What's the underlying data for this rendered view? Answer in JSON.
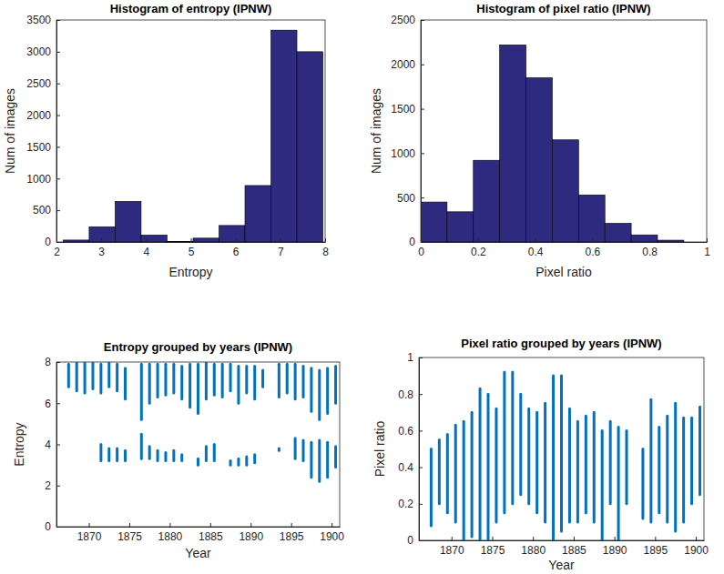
{
  "chart_data": [
    {
      "type": "histogram",
      "title": "Histogram of entropy (IPNW)",
      "x_label": "Entropy",
      "y_label": "Num of images",
      "bins": [
        2.15,
        2.73,
        3.31,
        3.89,
        4.47,
        5.05,
        5.63,
        6.21,
        6.79,
        7.37,
        7.95
      ],
      "values": [
        30,
        240,
        640,
        110,
        10,
        60,
        260,
        890,
        3340,
        3000
      ],
      "color": "#2e2a80",
      "xlim": [
        2,
        8
      ],
      "xticks": [
        2,
        3,
        4,
        5,
        6,
        7,
        8
      ],
      "ylim": [
        0,
        3500
      ],
      "yticks": [
        0,
        500,
        1000,
        1500,
        2000,
        2500,
        3000,
        3500
      ]
    },
    {
      "type": "histogram",
      "title": "Histogram of pixel ratio (IPNW)",
      "x_label": "Pixel ratio",
      "y_label": "Num of images",
      "bins": [
        0,
        0.092,
        0.184,
        0.276,
        0.368,
        0.46,
        0.552,
        0.644,
        0.736,
        0.828,
        0.92
      ],
      "values": [
        450,
        340,
        920,
        2220,
        1850,
        1150,
        530,
        210,
        80,
        20
      ],
      "color": "#2e2a80",
      "xlim": [
        0,
        1
      ],
      "xticks": [
        0,
        0.2,
        0.4,
        0.6,
        0.8,
        1
      ],
      "ylim": [
        0,
        2500
      ],
      "yticks": [
        0,
        500,
        1000,
        1500,
        2000,
        2500
      ]
    },
    {
      "type": "range",
      "title": "Entropy grouped by years (IPNW)",
      "x_label": "Year",
      "y_label": "Entropy",
      "series": [
        {
          "x": [
            1867.5,
            1868.5,
            1869.5,
            1870.5,
            1871.5,
            1872.5,
            1873.5,
            1874.5,
            1876.5,
            1877.5,
            1878.5,
            1879.5,
            1880.5,
            1881.5,
            1882.5,
            1883.5,
            1884.5,
            1885.5,
            1886.5,
            1887.5,
            1888.5,
            1889.5,
            1890.5,
            1891.5,
            1893.5,
            1894.5,
            1895.5,
            1896.5,
            1897.5,
            1898.5,
            1899.5,
            1900.5
          ],
          "low": [
            6.8,
            6.6,
            6.5,
            6.7,
            6.5,
            6.8,
            6.6,
            6.2,
            5.2,
            6.0,
            6.3,
            6.4,
            6.5,
            6.2,
            5.8,
            5.5,
            6.2,
            6.4,
            6.3,
            6.6,
            6.0,
            6.5,
            6.2,
            6.8,
            6.3,
            6.5,
            6.2,
            6.3,
            5.6,
            5.2,
            5.5,
            6.0
          ],
          "high": [
            7.9,
            8.0,
            8.0,
            8.0,
            7.9,
            8.0,
            7.9,
            7.7,
            7.9,
            7.9,
            7.9,
            7.9,
            7.9,
            7.8,
            7.9,
            7.9,
            8.0,
            7.9,
            7.9,
            7.9,
            7.8,
            7.8,
            7.8,
            7.6,
            7.9,
            7.9,
            7.9,
            7.8,
            7.7,
            7.6,
            7.7,
            7.8
          ]
        },
        {
          "x": [
            1871.5,
            1872.5,
            1873.5,
            1874.5,
            1876.5,
            1877.5,
            1878.5,
            1879.5,
            1880.5,
            1881.5,
            1883.5,
            1884.5,
            1885.5,
            1887.5,
            1888.5,
            1889.5,
            1890.5,
            1893.5,
            1895.5,
            1896.5,
            1897.5,
            1898.5,
            1899.5,
            1900.5
          ],
          "low": [
            3.2,
            3.2,
            3.2,
            3.2,
            3.3,
            3.3,
            3.2,
            3.2,
            3.2,
            3.2,
            3.0,
            3.2,
            3.2,
            3.0,
            3.0,
            3.0,
            3.1,
            3.7,
            3.3,
            3.2,
            2.4,
            2.2,
            2.4,
            2.9
          ],
          "high": [
            4.0,
            3.8,
            3.8,
            3.7,
            4.5,
            3.9,
            3.7,
            3.6,
            3.7,
            3.5,
            3.3,
            3.9,
            4.0,
            3.2,
            3.3,
            3.4,
            3.5,
            3.8,
            4.3,
            4.2,
            4.1,
            4.2,
            4.1,
            3.9
          ]
        }
      ],
      "color": "#0072bd",
      "xlim": [
        1866,
        1901
      ],
      "xticks": [
        1870,
        1875,
        1880,
        1885,
        1890,
        1895,
        1900
      ],
      "ylim": [
        0,
        8
      ],
      "yticks": [
        0,
        2,
        4,
        6,
        8
      ]
    },
    {
      "type": "range",
      "title": "Pixel ratio grouped by years (IPNW)",
      "x_label": "Year",
      "y_label": "Pixel ratio",
      "series": [
        {
          "x": [
            1867.5,
            1868.5,
            1869.5,
            1870.5,
            1871.5,
            1872.5,
            1873.5,
            1874.5,
            1875.5,
            1876.5,
            1877.5,
            1878.5,
            1879.5,
            1880.5,
            1881.5,
            1882.5,
            1883.5,
            1884.5,
            1885.5,
            1886.5,
            1887.5,
            1888.5,
            1889.5,
            1890.5,
            1891.5,
            1893.5,
            1894.5,
            1895.5,
            1896.5,
            1897.5,
            1898.5,
            1899.5,
            1900.5
          ],
          "low": [
            0.08,
            0.2,
            0.15,
            0.1,
            0.0,
            0.02,
            0.0,
            0.0,
            0.1,
            0.15,
            0.2,
            0.25,
            0.2,
            0.15,
            0.1,
            0.0,
            0.05,
            0.1,
            0.1,
            0.15,
            0.1,
            0.0,
            0.2,
            0.0,
            0.2,
            0.12,
            0.1,
            0.15,
            0.1,
            0.05,
            0.1,
            0.2,
            0.25
          ],
          "high": [
            0.5,
            0.55,
            0.58,
            0.63,
            0.65,
            0.7,
            0.83,
            0.8,
            0.72,
            0.92,
            0.92,
            0.8,
            0.72,
            0.7,
            0.75,
            0.9,
            0.9,
            0.72,
            0.65,
            0.68,
            0.7,
            0.6,
            0.65,
            0.62,
            0.6,
            0.5,
            0.77,
            0.62,
            0.68,
            0.75,
            0.67,
            0.67,
            0.73
          ]
        }
      ],
      "color": "#0072bd",
      "xlim": [
        1866,
        1901
      ],
      "xticks": [
        1870,
        1875,
        1880,
        1885,
        1890,
        1895,
        1900
      ],
      "ylim": [
        0,
        1
      ],
      "yticks": [
        0,
        0.2,
        0.4,
        0.6,
        0.8,
        1
      ]
    }
  ]
}
